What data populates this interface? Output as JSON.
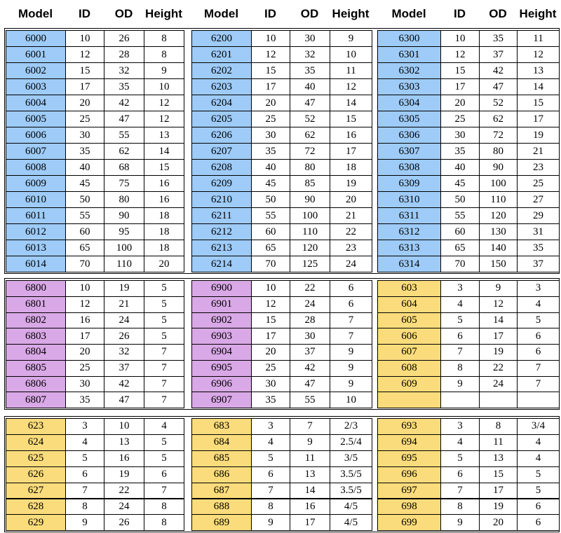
{
  "header": [
    "Model",
    "ID",
    "OD",
    "Height",
    "Model",
    "ID",
    "OD",
    "Height",
    "Model",
    "ID",
    "OD",
    "Height"
  ],
  "sections": [
    {
      "groups": [
        {
          "color": "#9ecbf7",
          "rows": [
            [
              "6000",
              "10",
              "26",
              "8"
            ],
            [
              "6001",
              "12",
              "28",
              "8"
            ],
            [
              "6002",
              "15",
              "32",
              "9"
            ],
            [
              "6003",
              "17",
              "35",
              "10"
            ],
            [
              "6004",
              "20",
              "42",
              "12"
            ],
            [
              "6005",
              "25",
              "47",
              "12"
            ],
            [
              "6006",
              "30",
              "55",
              "13"
            ],
            [
              "6007",
              "35",
              "62",
              "14"
            ],
            [
              "6008",
              "40",
              "68",
              "15"
            ],
            [
              "6009",
              "45",
              "75",
              "16"
            ],
            [
              "6010",
              "50",
              "80",
              "16"
            ],
            [
              "6011",
              "55",
              "90",
              "18"
            ],
            [
              "6012",
              "60",
              "95",
              "18"
            ],
            [
              "6013",
              "65",
              "100",
              "18"
            ],
            [
              "6014",
              "70",
              "110",
              "20"
            ]
          ]
        },
        {
          "color": "#9ecbf7",
          "rows": [
            [
              "6200",
              "10",
              "30",
              "9"
            ],
            [
              "6201",
              "12",
              "32",
              "10"
            ],
            [
              "6202",
              "15",
              "35",
              "11"
            ],
            [
              "6203",
              "17",
              "40",
              "12"
            ],
            [
              "6204",
              "20",
              "47",
              "14"
            ],
            [
              "6205",
              "25",
              "52",
              "15"
            ],
            [
              "6206",
              "30",
              "62",
              "16"
            ],
            [
              "6207",
              "35",
              "72",
              "17"
            ],
            [
              "6208",
              "40",
              "80",
              "18"
            ],
            [
              "6209",
              "45",
              "85",
              "19"
            ],
            [
              "6210",
              "50",
              "90",
              "20"
            ],
            [
              "6211",
              "55",
              "100",
              "21"
            ],
            [
              "6212",
              "60",
              "110",
              "22"
            ],
            [
              "6213",
              "65",
              "120",
              "23"
            ],
            [
              "6214",
              "70",
              "125",
              "24"
            ]
          ]
        },
        {
          "color": "#9ecbf7",
          "rows": [
            [
              "6300",
              "10",
              "35",
              "11"
            ],
            [
              "6301",
              "12",
              "37",
              "12"
            ],
            [
              "6302",
              "15",
              "42",
              "13"
            ],
            [
              "6303",
              "17",
              "47",
              "14"
            ],
            [
              "6304",
              "20",
              "52",
              "15"
            ],
            [
              "6305",
              "25",
              "62",
              "17"
            ],
            [
              "6306",
              "30",
              "72",
              "19"
            ],
            [
              "6307",
              "35",
              "80",
              "21"
            ],
            [
              "6308",
              "40",
              "90",
              "23"
            ],
            [
              "6309",
              "45",
              "100",
              "25"
            ],
            [
              "6310",
              "50",
              "110",
              "27"
            ],
            [
              "6311",
              "55",
              "120",
              "29"
            ],
            [
              "6312",
              "60",
              "130",
              "31"
            ],
            [
              "6313",
              "65",
              "140",
              "35"
            ],
            [
              "6314",
              "70",
              "150",
              "37"
            ]
          ]
        }
      ]
    },
    {
      "groups": [
        {
          "color": "#d9a8e6",
          "rows": [
            [
              "6800",
              "10",
              "19",
              "5"
            ],
            [
              "6801",
              "12",
              "21",
              "5"
            ],
            [
              "6802",
              "16",
              "24",
              "5"
            ],
            [
              "6803",
              "17",
              "26",
              "5"
            ],
            [
              "6804",
              "20",
              "32",
              "7"
            ],
            [
              "6805",
              "25",
              "37",
              "7"
            ],
            [
              "6806",
              "30",
              "42",
              "7"
            ],
            [
              "6807",
              "35",
              "47",
              "7"
            ]
          ]
        },
        {
          "color": "#d9a8e6",
          "rows": [
            [
              "6900",
              "10",
              "22",
              "6"
            ],
            [
              "6901",
              "12",
              "24",
              "6"
            ],
            [
              "6902",
              "15",
              "28",
              "7"
            ],
            [
              "6903",
              "17",
              "30",
              "7"
            ],
            [
              "6904",
              "20",
              "37",
              "9"
            ],
            [
              "6905",
              "25",
              "42",
              "9"
            ],
            [
              "6906",
              "30",
              "47",
              "9"
            ],
            [
              "6907",
              "35",
              "55",
              "10"
            ]
          ]
        },
        {
          "color": "#fbdc7c",
          "rows": [
            [
              "603",
              "3",
              "9",
              "3"
            ],
            [
              "604",
              "4",
              "12",
              "4"
            ],
            [
              "605",
              "5",
              "14",
              "5"
            ],
            [
              "606",
              "6",
              "17",
              "6"
            ],
            [
              "607",
              "7",
              "19",
              "6"
            ],
            [
              "608",
              "8",
              "22",
              "7"
            ],
            [
              "609",
              "9",
              "24",
              "7"
            ]
          ]
        }
      ]
    },
    {
      "groups": [
        {
          "color": "#fbdc7c",
          "rows": [
            [
              "623",
              "3",
              "10",
              "4"
            ],
            [
              "624",
              "4",
              "13",
              "5"
            ],
            [
              "625",
              "5",
              "16",
              "5"
            ],
            [
              "626",
              "6",
              "19",
              "6"
            ],
            [
              "627",
              "7",
              "22",
              "7"
            ],
            [
              "628",
              "8",
              "24",
              "8"
            ],
            [
              "629",
              "9",
              "26",
              "8"
            ]
          ]
        },
        {
          "color": "#fbdc7c",
          "rows": [
            [
              "683",
              "3",
              "7",
              "2/3"
            ],
            [
              "684",
              "4",
              "9",
              "2.5/4"
            ],
            [
              "685",
              "5",
              "11",
              "3/5"
            ],
            [
              "686",
              "6",
              "13",
              "3.5/5"
            ],
            [
              "687",
              "7",
              "14",
              "3.5/5"
            ],
            [
              "688",
              "8",
              "16",
              "4/5"
            ],
            [
              "689",
              "9",
              "17",
              "4/5"
            ]
          ]
        },
        {
          "color": "#fbdc7c",
          "rows": [
            [
              "693",
              "3",
              "8",
              "3/4"
            ],
            [
              "694",
              "4",
              "11",
              "4"
            ],
            [
              "695",
              "5",
              "13",
              "4"
            ],
            [
              "696",
              "6",
              "15",
              "5"
            ],
            [
              "697",
              "7",
              "17",
              "5"
            ],
            [
              "698",
              "8",
              "19",
              "6"
            ],
            [
              "699",
              "9",
              "20",
              "6"
            ]
          ]
        }
      ]
    }
  ]
}
